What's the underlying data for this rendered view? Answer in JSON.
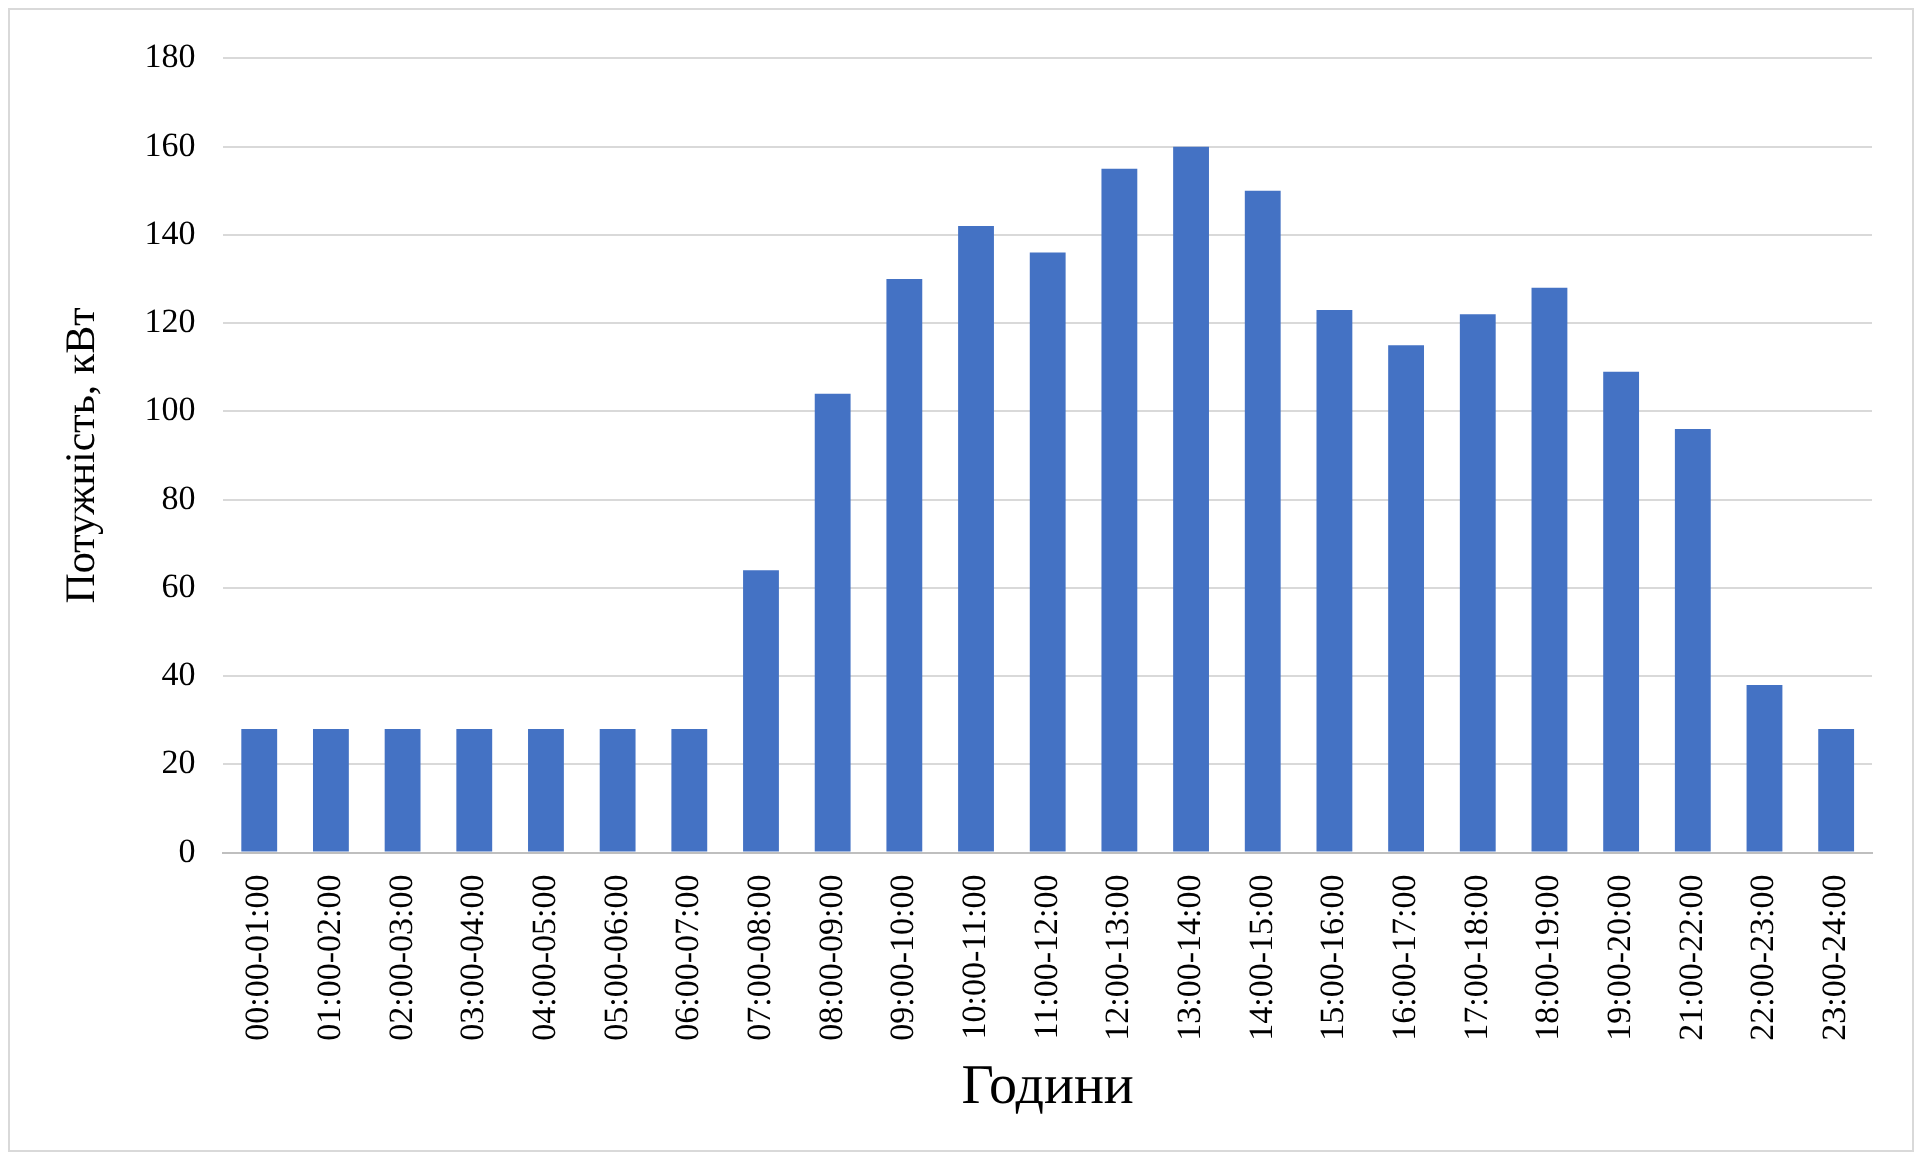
{
  "chart_data": {
    "type": "bar",
    "xlabel": "Години",
    "ylabel": "Потужність, кВт",
    "categories": [
      "00:00-01:00",
      "01:00-02:00",
      "02:00-03:00",
      "03:00-04:00",
      "04:00-05:00",
      "05:00-06:00",
      "06:00-07:00",
      "07:00-08:00",
      "08:00-09:00",
      "09:00-10:00",
      "10:00-11:00",
      "11:00-12:00",
      "12:00-13:00",
      "13:00-14:00",
      "14:00-15:00",
      "15:00-16:00",
      "16:00-17:00",
      "17:00-18:00",
      "18:00-19:00",
      "19:00-20:00",
      "21:00-22:00",
      "22:00-23:00",
      "23:00-24:00"
    ],
    "values": [
      28,
      28,
      28,
      28,
      28,
      28,
      28,
      64,
      104,
      130,
      142,
      136,
      155,
      160,
      150,
      123,
      115,
      122,
      128,
      109,
      96,
      38,
      28
    ],
    "color": "#4472c4",
    "ylim": [
      0,
      180
    ],
    "yticks": [
      0,
      20,
      40,
      60,
      80,
      100,
      120,
      140,
      160,
      180
    ],
    "grid": "y",
    "legend": false
  }
}
